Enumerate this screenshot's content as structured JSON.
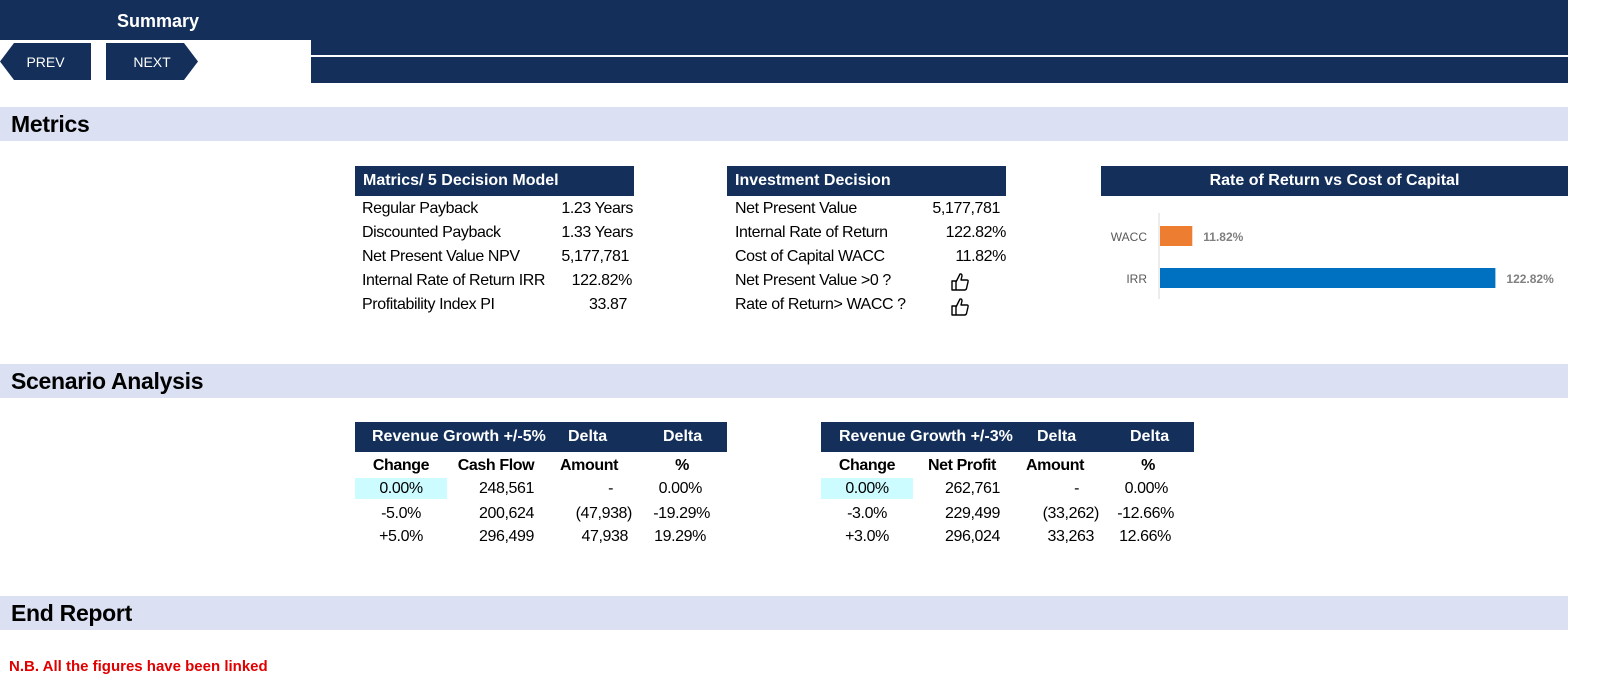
{
  "header": {
    "title": "Summary",
    "prev_label": "PREV",
    "next_label": "NEXT"
  },
  "sections": {
    "metrics": "Metrics",
    "scenario": "Scenario Analysis",
    "end": "End Report"
  },
  "decision_model": {
    "title": "Matrics/ 5 Decision Model",
    "rows": [
      {
        "label": "Regular Payback",
        "value": "1.23 Years"
      },
      {
        "label": "Discounted Payback",
        "value": "1.33 Years"
      },
      {
        "label": "Net Present Value NPV",
        "value": "5,177,781"
      },
      {
        "label": "Internal Rate of Return IRR",
        "value": "122.82%"
      },
      {
        "label": "Profitability Index PI",
        "value": "33.87"
      }
    ]
  },
  "investment_decision": {
    "title": "Investment Decision",
    "rows": [
      {
        "label": "Net Present Value",
        "value": "5,177,781"
      },
      {
        "label": "Internal Rate of Return",
        "value": "122.82%"
      },
      {
        "label": "Cost of Capital WACC",
        "value": "11.82%"
      },
      {
        "label": "Net Present Value >0 ?",
        "icon": "thumbs-up-icon"
      },
      {
        "label": "Rate of Return> WACC ?",
        "icon": "thumbs-up-icon"
      }
    ]
  },
  "chart_data": {
    "type": "bar",
    "orientation": "horizontal",
    "title": "Rate of Return vs Cost of Capital",
    "categories": [
      "WACC",
      "IRR"
    ],
    "values": [
      11.82,
      122.82
    ],
    "value_labels": [
      "11.82%",
      "122.82%"
    ],
    "colors": [
      "#ed7d31",
      "#0070c0"
    ],
    "xlim": [
      0,
      130
    ],
    "grid": false
  },
  "scenario_revenue": {
    "headers": [
      "Revenue Growth +/-5%",
      "Delta",
      "Delta"
    ],
    "subheaders": [
      "Change",
      "Cash Flow",
      "Amount",
      "%"
    ],
    "rows": [
      [
        "0.00%",
        "248,561",
        "-",
        "0.00%"
      ],
      [
        "-5.0%",
        "200,624",
        "(47,938)",
        "-19.29%"
      ],
      [
        "+5.0%",
        "296,499",
        "47,938",
        "19.29%"
      ]
    ]
  },
  "scenario_profit": {
    "headers": [
      "Revenue Growth +/-3%",
      "Delta",
      "Delta"
    ],
    "subheaders": [
      "Change",
      "Net Profit",
      "Amount",
      "%"
    ],
    "rows": [
      [
        "0.00%",
        "262,761",
        "-",
        "0.00%"
      ],
      [
        "-3.0%",
        "229,499",
        "(33,262)",
        "-12.66%"
      ],
      [
        "+3.0%",
        "296,024",
        "33,263",
        "12.66%"
      ]
    ]
  },
  "note": "N.B. All the figures have been linked",
  "colors": {
    "navy": "#14305a",
    "section_band": "#dbe1f3",
    "highlight": "#ccfcff",
    "note_red": "#e00000"
  }
}
